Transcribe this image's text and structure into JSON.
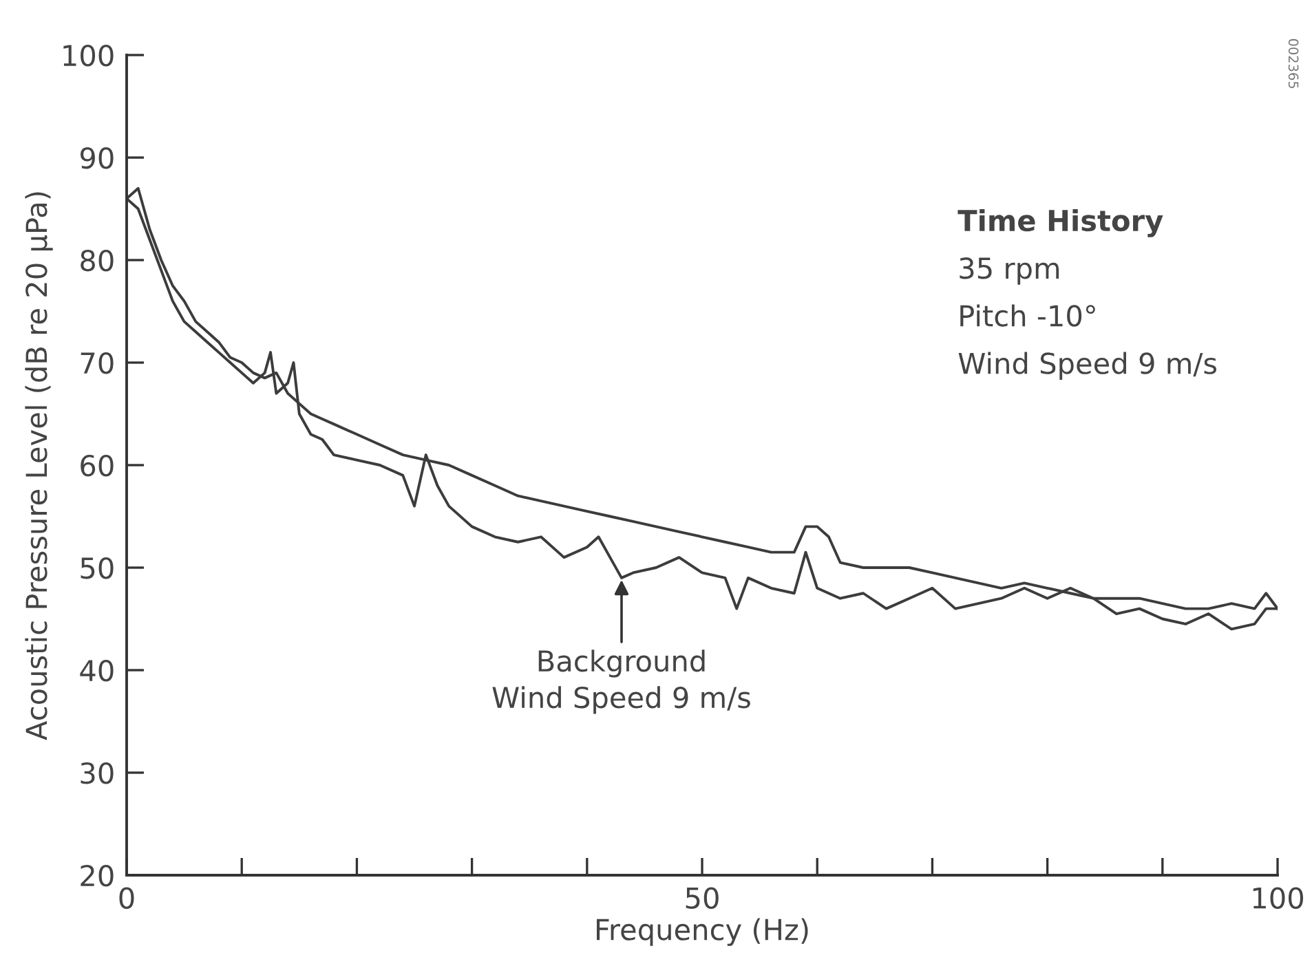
{
  "chart_data": {
    "type": "line",
    "xlabel": "Frequency (Hz)",
    "ylabel": "Acoustic Pressure Level (dB re 20 μPa)",
    "xlim": [
      0,
      100
    ],
    "ylim": [
      20,
      100
    ],
    "xticks": [
      0,
      {
        "value": 10,
        "label": null
      },
      {
        "value": 20,
        "label": null
      },
      {
        "value": 30,
        "label": null
      },
      {
        "value": 40,
        "label": null
      },
      50,
      {
        "value": 60,
        "label": null
      },
      {
        "value": 70,
        "label": null
      },
      {
        "value": 80,
        "label": null
      },
      {
        "value": 90,
        "label": null
      },
      100
    ],
    "yticks": [
      20,
      30,
      40,
      50,
      60,
      70,
      80,
      90,
      100
    ],
    "grid": false,
    "line_style": "solid",
    "marker": "none",
    "series": [
      {
        "color": "#3c3c3c",
        "x": [
          0,
          1,
          2,
          3,
          4,
          5,
          6,
          7,
          8,
          9,
          10,
          11,
          12,
          13,
          14,
          15,
          16,
          17,
          18,
          20,
          22,
          24,
          26,
          28,
          30,
          32,
          34,
          36,
          38,
          40,
          42,
          44,
          46,
          48,
          50,
          52,
          54,
          56,
          58,
          59,
          60,
          61,
          62,
          64,
          66,
          68,
          70,
          72,
          74,
          76,
          78,
          80,
          82,
          84,
          86,
          88,
          90,
          92,
          94,
          96,
          98,
          99,
          100
        ],
        "values": [
          86,
          87,
          83,
          80,
          77.5,
          76,
          74,
          73,
          72,
          70.5,
          70,
          69,
          68.5,
          69,
          67,
          66,
          65,
          64.5,
          64,
          63,
          62,
          61,
          60.5,
          60,
          59,
          58,
          57,
          56.5,
          56,
          55.5,
          55,
          54.5,
          54,
          53.5,
          53,
          52.5,
          52,
          51.5,
          51.5,
          54,
          54,
          53,
          50.5,
          50,
          50,
          50,
          49.5,
          49,
          48.5,
          48,
          48.5,
          48,
          47.5,
          47,
          47,
          47,
          46.5,
          46,
          46,
          46.5,
          46,
          47.5,
          46
        ]
      },
      {
        "color": "#3c3c3c",
        "x": [
          0,
          1,
          2,
          3,
          4,
          5,
          6,
          7,
          8,
          9,
          10,
          11,
          12,
          12.5,
          13,
          14,
          14.5,
          15,
          16,
          17,
          18,
          20,
          22,
          24,
          25,
          26,
          27,
          28,
          30,
          32,
          34,
          36,
          38,
          40,
          41,
          42,
          43,
          44,
          46,
          48,
          50,
          52,
          53,
          54,
          56,
          58,
          59,
          60,
          62,
          64,
          66,
          68,
          70,
          72,
          74,
          76,
          78,
          80,
          82,
          84,
          86,
          88,
          90,
          92,
          94,
          96,
          98,
          99,
          100
        ],
        "values": [
          86,
          85,
          82,
          79,
          76,
          74,
          73,
          72,
          71,
          70,
          69,
          68,
          69,
          71,
          67,
          68,
          70,
          65,
          63,
          62.5,
          61,
          60.5,
          60,
          59,
          56,
          61,
          58,
          56,
          54,
          53,
          52.5,
          53,
          51,
          52,
          53,
          51,
          49,
          49.5,
          50,
          51,
          49.5,
          49,
          46,
          49,
          48,
          47.5,
          51.5,
          48,
          47,
          47.5,
          46,
          47,
          48,
          46,
          46.5,
          47,
          48,
          47,
          48,
          47,
          45.5,
          46,
          45,
          44.5,
          45.5,
          44,
          44.5,
          46,
          46
        ]
      }
    ],
    "annotations": [
      "Time History",
      "35 rpm",
      "Pitch -10°",
      "Wind Speed 9 m/s",
      {
        "text": "Background\nWind Speed 9 m/s",
        "x": 43,
        "y": 49
      },
      "002365"
    ]
  }
}
